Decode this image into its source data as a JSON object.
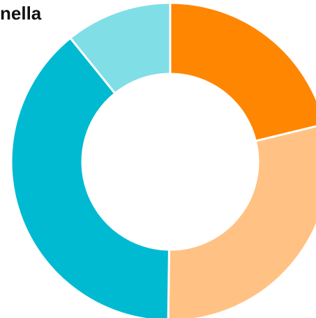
{
  "chart_data": {
    "type": "pie",
    "title": "nella",
    "donut": true,
    "start_angle_deg": 0,
    "direction": "clockwise",
    "slices": [
      {
        "value": 21.2,
        "color": "#FF8600"
      },
      {
        "value": 29.0,
        "color": "#FFC284"
      },
      {
        "value": 39.0,
        "color": "#00BAD2"
      },
      {
        "value": 10.8,
        "color": "#80DEE7"
      }
    ],
    "separator_color": "#FFFFFF"
  }
}
